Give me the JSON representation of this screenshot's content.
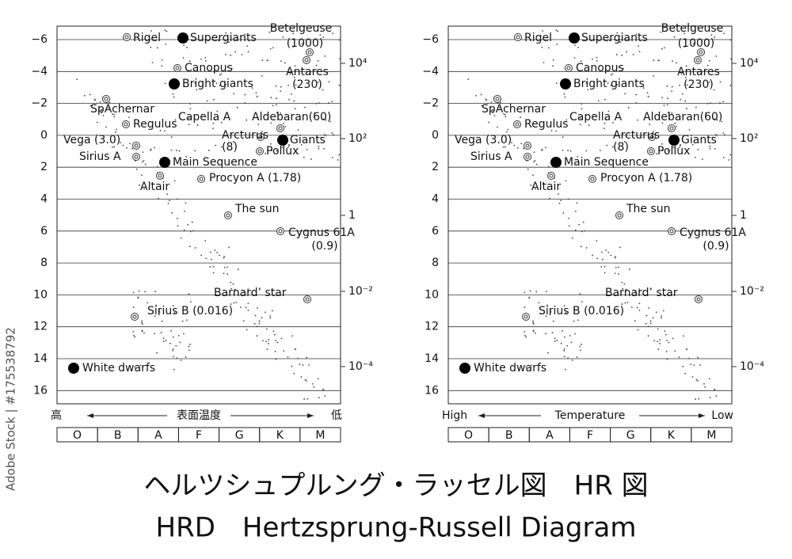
{
  "panels": [
    {
      "y_ticks": [
        "−6",
        "−4",
        "−2",
        "0",
        "2",
        "4",
        "6",
        "8",
        "10",
        "12",
        "14",
        "16"
      ],
      "luminosity_ticks": [
        "10⁴",
        "10²",
        "1",
        "10⁻²",
        "10⁻⁴"
      ],
      "labels": [
        "Rigel",
        "Supergiants",
        "Betelgeuse",
        "(1000)",
        "Canopus",
        "Antares",
        "(230)",
        "Bright giants",
        "SpAchernar",
        "Regulus",
        "Capella A",
        "Aldebaran(60)",
        "Arcturus",
        "(8)",
        "Giants",
        "Pollux",
        "Vega (3.0)",
        "Sirius A",
        "Main Sequence",
        "Altair",
        "Procyon A (1.78)",
        "The sun",
        "Cygnus 61A",
        "(0.9)",
        "Barnard’ star",
        "Sirius B (0.016)",
        "White dwarfs"
      ],
      "axis_high": "高",
      "axis_title": "表面温度",
      "axis_low": "低",
      "spectral_classes": [
        "O",
        "B",
        "A",
        "F",
        "G",
        "K",
        "M"
      ]
    },
    {
      "y_ticks": [
        "−6",
        "−4",
        "−2",
        "0",
        "2",
        "4",
        "6",
        "8",
        "10",
        "12",
        "14",
        "16"
      ],
      "luminosity_ticks": [
        "10⁴",
        "10²",
        "1",
        "10⁻²",
        "10⁻⁴"
      ],
      "labels": [
        "Rigel",
        "Supergiants",
        "Betelgeuse",
        "(1000)",
        "Canopus",
        "Antares",
        "(230)",
        "Bright giants",
        "SpAchernar",
        "Regulus",
        "Capella A",
        "Aldebaran(60)",
        "Arcturus",
        "(8)",
        "Giants",
        "Pollux",
        "Vega (3.0)",
        "Sirius A",
        "Main Sequence",
        "Altair",
        "Procyon A (1.78)",
        "The sun",
        "Cygnus 61A",
        "(0.9)",
        "Barnard’ star",
        "Sirius B (0.016)",
        "White dwarfs"
      ],
      "axis_high": "High",
      "axis_title": "Temperature",
      "axis_low": "Low",
      "spectral_classes": [
        "O",
        "B",
        "A",
        "F",
        "G",
        "K",
        "M"
      ]
    }
  ],
  "title_japanese": "ヘルツシュプルング・ラッセル図　HR 図",
  "title_english": "HRD　Hertzsprung-Russell Diagram",
  "watermark": "Adobe Stock | #175538792"
}
